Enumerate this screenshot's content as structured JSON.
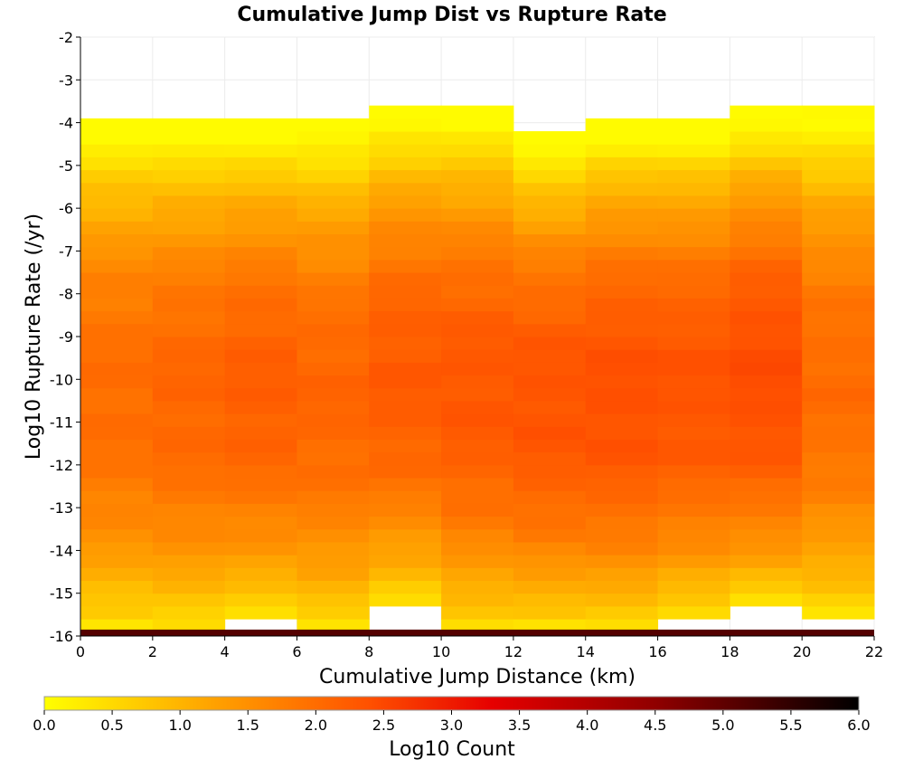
{
  "chart_data": {
    "type": "heatmap",
    "title": "Cumulative Jump Dist vs Rupture Rate",
    "xlabel": "Cumulative Jump Distance (km)",
    "ylabel": "Log10 Rupture Rate (/yr)",
    "xlim": [
      0,
      22
    ],
    "ylim": [
      -16,
      -2
    ],
    "x_ticks": [
      "0",
      "2",
      "4",
      "6",
      "8",
      "10",
      "12",
      "14",
      "16",
      "18",
      "20",
      "22"
    ],
    "y_ticks": [
      "-2",
      "-3",
      "-4",
      "-5",
      "-6",
      "-7",
      "-8",
      "-9",
      "-10",
      "-11",
      "-12",
      "-13",
      "-14",
      "-15",
      "-16"
    ],
    "x_bin_width": 2,
    "y_bin_width": 0.3,
    "y_bin_start": -16,
    "columns": [
      {
        "x_start": 0,
        "y_min": -15.9,
        "y_max": -3.8,
        "peak": 2.0
      },
      {
        "x_start": 2,
        "y_min": -15.9,
        "y_max": -3.8,
        "peak": 2.1
      },
      {
        "x_start": 4,
        "y_min": -15.6,
        "y_max": -3.8,
        "peak": 2.2
      },
      {
        "x_start": 6,
        "y_min": -15.9,
        "y_max": -3.8,
        "peak": 2.1
      },
      {
        "x_start": 8,
        "y_min": -15.3,
        "y_max": -3.5,
        "peak": 2.25
      },
      {
        "x_start": 10,
        "y_min": -15.9,
        "y_max": -3.5,
        "peak": 2.3
      },
      {
        "x_start": 12,
        "y_min": -15.9,
        "y_max": -4.1,
        "peak": 2.35
      },
      {
        "x_start": 14,
        "y_min": -15.9,
        "y_max": -3.8,
        "peak": 2.4
      },
      {
        "x_start": 16,
        "y_min": -15.6,
        "y_max": -3.8,
        "peak": 2.35
      },
      {
        "x_start": 18,
        "y_min": -15.3,
        "y_max": -3.5,
        "peak": 2.45
      },
      {
        "x_start": 20,
        "y_min": -15.6,
        "y_max": -3.5,
        "peak": 2.0
      }
    ],
    "bottom_row": {
      "y_range": [
        -16,
        -15.85
      ],
      "value": 5.3
    },
    "colorbar": {
      "label": "Log10 Count",
      "min": 0.0,
      "max": 6.0,
      "ticks": [
        "0.0",
        "0.5",
        "1.0",
        "1.5",
        "2.0",
        "2.5",
        "3.0",
        "3.5",
        "4.0",
        "4.5",
        "5.0",
        "5.5",
        "6.0"
      ],
      "colors": [
        "#ffff00",
        "#ffa500",
        "#ff5000",
        "#e60000",
        "#900000",
        "#000000"
      ]
    },
    "grid": true
  }
}
